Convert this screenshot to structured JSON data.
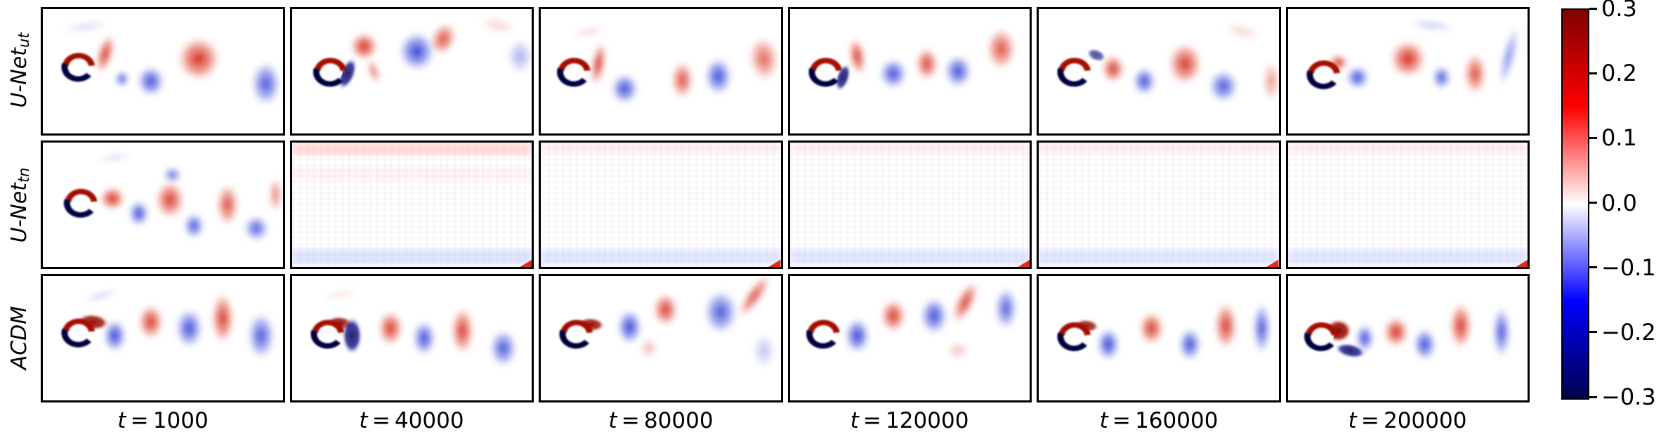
{
  "chart_data": {
    "type": "heatmap",
    "description": "Grid of vorticity field predictions (von Karman vortex street behind a cylinder) for three models over six time steps, diverging red/blue colormap",
    "rows": [
      {
        "name": "U-Net",
        "sub": "ut"
      },
      {
        "name": "U-Net",
        "sub": "tn"
      },
      {
        "name": "ACDM",
        "sub": ""
      }
    ],
    "columns": [
      "t = 1000",
      "t = 40000",
      "t = 80000",
      "t = 120000",
      "t = 160000",
      "t = 200000"
    ],
    "colorbar": {
      "ticks": [
        "0.3",
        "0.2",
        "0.1",
        "0.0",
        "−0.1",
        "−0.2",
        "−0.3"
      ],
      "vmin": -0.3,
      "vmax": 0.3,
      "colormap": "seismic",
      "stops": [
        "#7f0000",
        "#ff0000",
        "#ffffff",
        "#0000ff",
        "#00004d"
      ]
    },
    "colors": {
      "pos": "#cf1508",
      "neg": "#1b2bd0",
      "pos_dark": "#8a0500",
      "neg_dark": "#06064f"
    },
    "blob_format": "x_pct, y_pct, rx_pct, ry_pct, rot_deg, color(r|b|R|B), opacity",
    "band_format": "y_pct, h_pct, color(p|bl), opacity",
    "panels": [
      {
        "row": 0,
        "col": 0,
        "type": "field",
        "cylinder": [
          15,
          46
        ],
        "blobs": [
          [
            26,
            36,
            4,
            18,
            14,
            "r",
            0.9
          ],
          [
            33,
            56,
            3.5,
            8,
            0,
            "b",
            0.8
          ],
          [
            45,
            58,
            6.5,
            14,
            0,
            "b",
            0.9
          ],
          [
            65,
            40,
            10,
            20,
            0,
            "r",
            0.95
          ],
          [
            93,
            60,
            7,
            20,
            0,
            "b",
            0.85
          ],
          [
            18,
            14,
            11,
            6,
            -12,
            "b",
            0.15
          ]
        ]
      },
      {
        "row": 0,
        "col": 1,
        "type": "field",
        "cylinder": [
          16,
          50
        ],
        "blobs": [
          [
            23,
            52,
            3.5,
            14,
            18,
            "B",
            0.9
          ],
          [
            30,
            30,
            6.5,
            13,
            0,
            "r",
            0.95
          ],
          [
            34,
            50,
            3,
            12,
            -15,
            "r",
            0.55
          ],
          [
            52,
            34,
            8.5,
            18,
            0,
            "b",
            0.95
          ],
          [
            63,
            24,
            6,
            15,
            15,
            "r",
            0.8
          ],
          [
            95,
            38,
            6,
            16,
            0,
            "b",
            0.4
          ],
          [
            86,
            13,
            9,
            8,
            15,
            "r",
            0.18
          ]
        ]
      },
      {
        "row": 0,
        "col": 2,
        "type": "field",
        "cylinder": [
          14,
          50
        ],
        "blobs": [
          [
            24,
            44,
            3.5,
            20,
            8,
            "r",
            0.9
          ],
          [
            35,
            64,
            6.5,
            14,
            0,
            "b",
            0.9
          ],
          [
            59,
            57,
            5.5,
            17,
            0,
            "r",
            0.8
          ],
          [
            74,
            54,
            6.5,
            17,
            0,
            "b",
            0.9
          ],
          [
            93,
            40,
            7,
            20,
            -5,
            "r",
            0.7
          ],
          [
            20,
            18,
            9,
            5,
            -15,
            "r",
            0.15
          ]
        ]
      },
      {
        "row": 0,
        "col": 3,
        "type": "field",
        "cylinder": [
          15,
          50
        ],
        "blobs": [
          [
            22,
            55,
            3,
            12,
            15,
            "B",
            0.9
          ],
          [
            28,
            38,
            4,
            17,
            -8,
            "r",
            0.9
          ],
          [
            43,
            52,
            6.5,
            14,
            0,
            "b",
            0.9
          ],
          [
            57,
            44,
            5.5,
            15,
            0,
            "r",
            0.85
          ],
          [
            70,
            50,
            6.5,
            15,
            0,
            "b",
            0.9
          ],
          [
            88,
            32,
            7,
            19,
            0,
            "r",
            0.8
          ]
        ]
      },
      {
        "row": 0,
        "col": 4,
        "type": "field",
        "cylinder": [
          15,
          50
        ],
        "blobs": [
          [
            24,
            37,
            4.5,
            5,
            30,
            "B",
            0.7
          ],
          [
            31,
            48,
            5.5,
            13,
            0,
            "r",
            0.9
          ],
          [
            44,
            58,
            5.5,
            13,
            0,
            "b",
            0.9
          ],
          [
            61,
            44,
            8,
            19,
            0,
            "r",
            0.9
          ],
          [
            77,
            62,
            7,
            15,
            0,
            "b",
            0.85
          ],
          [
            97,
            58,
            4.5,
            18,
            0,
            "r",
            0.45
          ],
          [
            85,
            18,
            9,
            7,
            20,
            "r",
            0.18
          ]
        ]
      },
      {
        "row": 0,
        "col": 5,
        "type": "field",
        "cylinder": [
          15,
          52
        ],
        "blobs": [
          [
            21,
            43,
            4.5,
            8,
            0,
            "r",
            0.9
          ],
          [
            29,
            55,
            5.5,
            11,
            0,
            "b",
            0.9
          ],
          [
            50,
            40,
            8.5,
            17,
            0,
            "r",
            0.95
          ],
          [
            64,
            55,
            4.5,
            11,
            0,
            "b",
            0.85
          ],
          [
            78,
            52,
            5.5,
            19,
            0,
            "r",
            0.8
          ],
          [
            92,
            38,
            3.5,
            28,
            12,
            "b",
            0.55
          ],
          [
            60,
            13,
            11,
            6,
            8,
            "b",
            0.22
          ]
        ]
      },
      {
        "row": 1,
        "col": 0,
        "type": "field",
        "cylinder": [
          16,
          48
        ],
        "blobs": [
          [
            29,
            45,
            6,
            11,
            0,
            "r",
            0.95
          ],
          [
            40,
            57,
            5,
            12,
            0,
            "b",
            0.9
          ],
          [
            54,
            26,
            4.5,
            8,
            0,
            "b",
            0.7
          ],
          [
            53,
            46,
            7,
            17,
            0,
            "r",
            0.9
          ],
          [
            63,
            67,
            5,
            12,
            0,
            "b",
            0.85
          ],
          [
            77,
            50,
            5.5,
            19,
            0,
            "r",
            0.8
          ],
          [
            89,
            69,
            6,
            12,
            0,
            "b",
            0.8
          ],
          [
            97,
            42,
            3.5,
            16,
            0,
            "r",
            0.55
          ],
          [
            30,
            12,
            8,
            5,
            -10,
            "b",
            0.15
          ]
        ]
      },
      {
        "row": 1,
        "col": 1,
        "type": "faint",
        "bands": [
          [
            0,
            10,
            "p",
            0.5
          ],
          [
            20,
            10,
            "p",
            0.15
          ],
          [
            86,
            12,
            "bl",
            0.45
          ]
        ],
        "corner": true
      },
      {
        "row": 1,
        "col": 2,
        "type": "faint",
        "bands": [
          [
            0,
            8,
            "p",
            0.22
          ],
          [
            86,
            12,
            "bl",
            0.4
          ]
        ],
        "corner": true
      },
      {
        "row": 1,
        "col": 3,
        "type": "faint",
        "bands": [
          [
            0,
            8,
            "p",
            0.22
          ],
          [
            86,
            12,
            "bl",
            0.4
          ]
        ],
        "corner": true
      },
      {
        "row": 1,
        "col": 4,
        "type": "faint",
        "bands": [
          [
            0,
            8,
            "p",
            0.22
          ],
          [
            86,
            12,
            "bl",
            0.4
          ]
        ],
        "corner": true
      },
      {
        "row": 1,
        "col": 5,
        "type": "faint",
        "bands": [
          [
            0,
            8,
            "p",
            0.22
          ],
          [
            86,
            12,
            "bl",
            0.4
          ]
        ],
        "corner": true
      },
      {
        "row": 2,
        "col": 0,
        "type": "field",
        "cylinder": [
          15,
          45
        ],
        "blobs": [
          [
            21,
            37,
            7,
            7,
            8,
            "R",
            0.95
          ],
          [
            30,
            48,
            5.5,
            15,
            0,
            "b",
            0.95
          ],
          [
            45,
            37,
            6,
            16,
            0,
            "r",
            0.9
          ],
          [
            61,
            42,
            6.5,
            18,
            0,
            "b",
            0.9
          ],
          [
            75,
            34,
            5.5,
            23,
            0,
            "r",
            0.9
          ],
          [
            91,
            48,
            6.5,
            21,
            0,
            "b",
            0.85
          ],
          [
            24,
            16,
            9,
            5,
            -18,
            "b",
            0.18
          ]
        ]
      },
      {
        "row": 2,
        "col": 1,
        "type": "field",
        "cylinder": [
          15,
          46
        ],
        "blobs": [
          [
            20,
            38,
            6,
            6,
            8,
            "R",
            0.95
          ],
          [
            25,
            48,
            4.5,
            16,
            0,
            "B",
            0.9
          ],
          [
            41,
            42,
            6,
            16,
            0,
            "r",
            0.9
          ],
          [
            55,
            50,
            5.5,
            16,
            0,
            "b",
            0.9
          ],
          [
            71,
            44,
            5.5,
            21,
            0,
            "r",
            0.9
          ],
          [
            88,
            58,
            6.5,
            17,
            0,
            "b",
            0.85
          ],
          [
            20,
            15,
            9,
            5,
            -15,
            "r",
            0.12
          ]
        ]
      },
      {
        "row": 2,
        "col": 2,
        "type": "field",
        "cylinder": [
          15,
          46
        ],
        "blobs": [
          [
            21,
            39,
            6,
            6,
            5,
            "R",
            0.95
          ],
          [
            37,
            41,
            6,
            16,
            0,
            "b",
            0.95
          ],
          [
            52,
            27,
            6,
            15,
            0,
            "r",
            0.9
          ],
          [
            75,
            29,
            8,
            20,
            0,
            "b",
            0.85
          ],
          [
            89,
            16,
            4,
            22,
            30,
            "r",
            0.8
          ],
          [
            45,
            58,
            4.5,
            10,
            0,
            "r",
            0.3
          ],
          [
            93,
            60,
            5.5,
            16,
            0,
            "b",
            0.3
          ]
        ]
      },
      {
        "row": 2,
        "col": 3,
        "type": "field",
        "cylinder": [
          14,
          46
        ],
        "blobs": [
          [
            28,
            48,
            6,
            16,
            0,
            "b",
            0.95
          ],
          [
            43,
            32,
            6,
            15,
            0,
            "r",
            0.9
          ],
          [
            60,
            32,
            6.5,
            17,
            0,
            "b",
            0.9
          ],
          [
            73,
            21,
            4.5,
            20,
            22,
            "r",
            0.85
          ],
          [
            90,
            26,
            5.5,
            19,
            0,
            "b",
            0.8
          ],
          [
            70,
            60,
            5.5,
            9,
            0,
            "r",
            0.25
          ]
        ]
      },
      {
        "row": 2,
        "col": 4,
        "type": "field",
        "cylinder": [
          15,
          48
        ],
        "blobs": [
          [
            20,
            40,
            5.5,
            5.5,
            8,
            "R",
            0.9
          ],
          [
            29,
            55,
            5.5,
            15,
            0,
            "b",
            0.95
          ],
          [
            47,
            42,
            6,
            15,
            0,
            "r",
            0.9
          ],
          [
            63,
            55,
            5.5,
            15,
            0,
            "b",
            0.9
          ],
          [
            78,
            40,
            5.5,
            21,
            0,
            "r",
            0.9
          ],
          [
            93,
            42,
            4.5,
            23,
            0,
            "b",
            0.85
          ]
        ]
      },
      {
        "row": 2,
        "col": 5,
        "type": "field",
        "cylinder": [
          14,
          48
        ],
        "blobs": [
          [
            21,
            44,
            6,
            10,
            0,
            "R",
            1
          ],
          [
            26,
            60,
            7,
            6,
            15,
            "B",
            0.9
          ],
          [
            32,
            50,
            4.5,
            13,
            0,
            "b",
            0.9
          ],
          [
            45,
            45,
            6,
            14,
            0,
            "r",
            0.95
          ],
          [
            57,
            55,
            5.5,
            15,
            0,
            "b",
            0.9
          ],
          [
            72,
            40,
            5.5,
            21,
            0,
            "r",
            0.9
          ],
          [
            89,
            45,
            4.5,
            23,
            0,
            "b",
            0.85
          ]
        ]
      }
    ]
  }
}
